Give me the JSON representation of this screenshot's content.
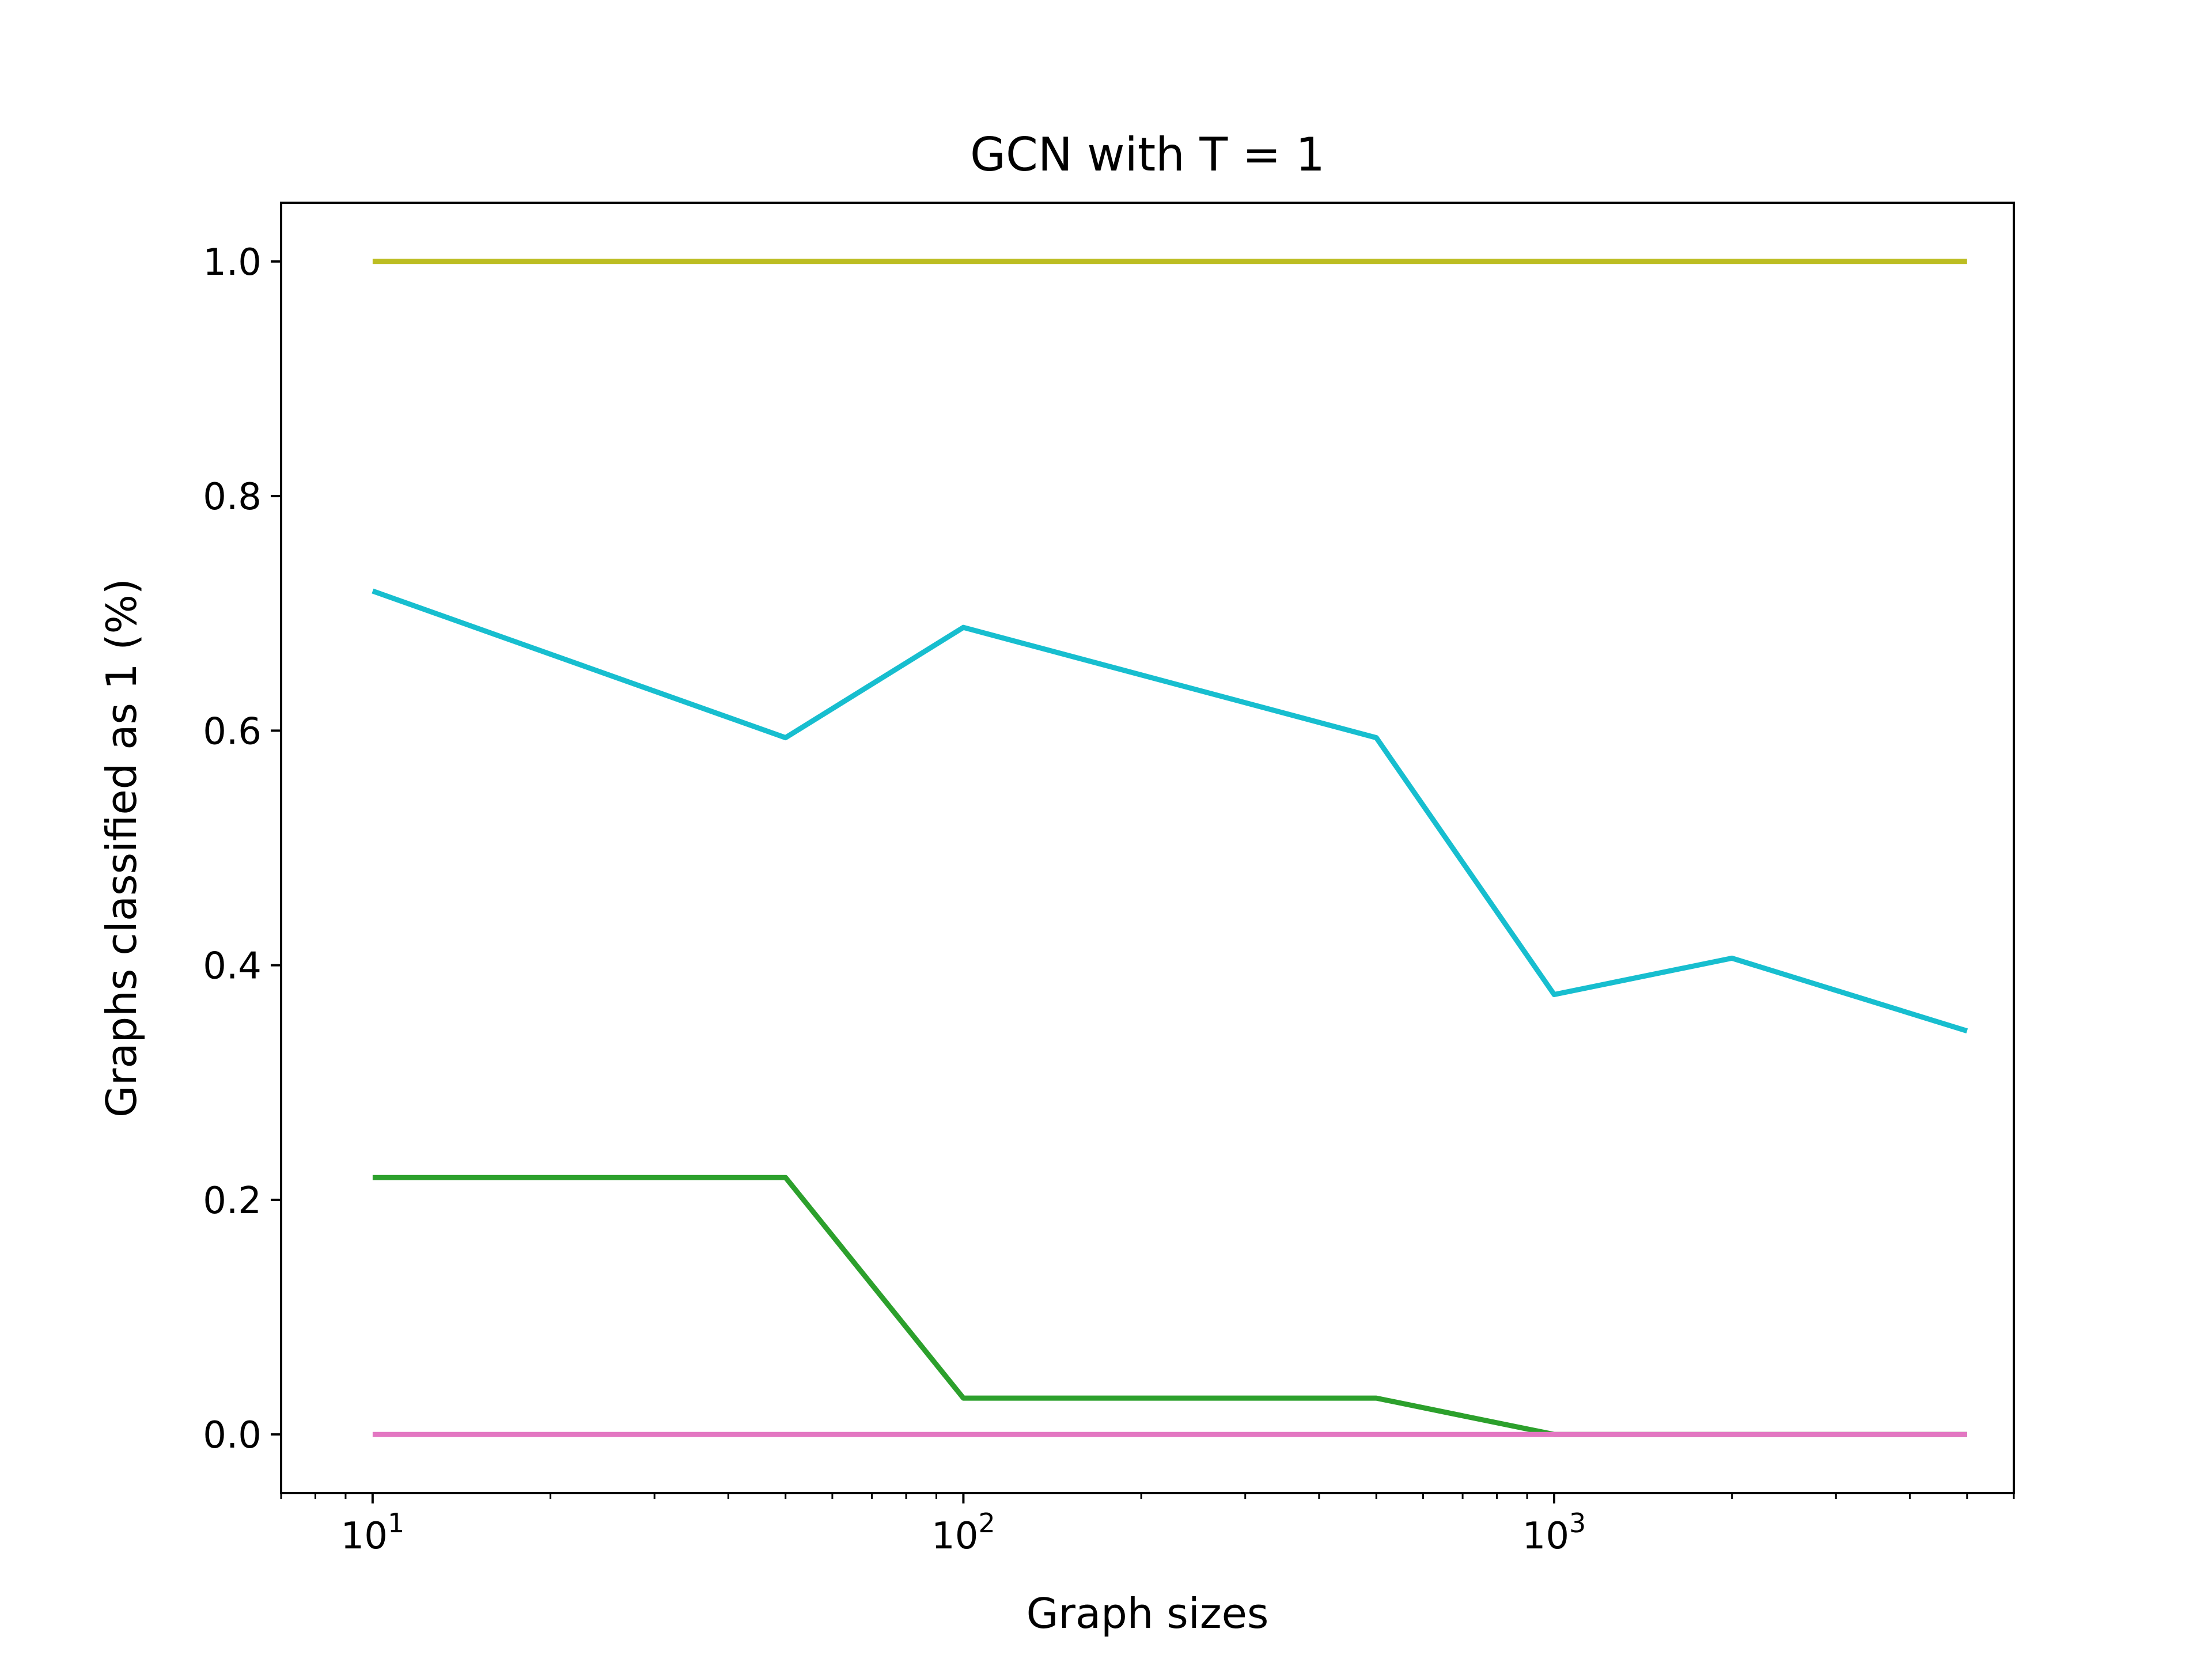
{
  "chart_data": {
    "type": "line",
    "title": "GCN with T = 1",
    "xlabel": "Graph sizes",
    "ylabel": "Graphs classified as 1 (%)",
    "xscale": "log",
    "xlim": [
      7,
      6000
    ],
    "ylim": [
      -0.05,
      1.05
    ],
    "grid": false,
    "x_ticks": [
      {
        "base": "10",
        "exp": "1",
        "value": 10
      },
      {
        "base": "10",
        "exp": "2",
        "value": 100
      },
      {
        "base": "10",
        "exp": "3",
        "value": 1000
      }
    ],
    "y_ticks": [
      "0.0",
      "0.2",
      "0.4",
      "0.6",
      "0.8",
      "1.0"
    ],
    "x": [
      10,
      50,
      100,
      500,
      1000,
      2000,
      5000
    ],
    "series": [
      {
        "name": "series-olive",
        "color": "#bcbd22",
        "values": [
          1.0,
          1.0,
          1.0,
          1.0,
          1.0,
          1.0,
          1.0
        ]
      },
      {
        "name": "series-cyan",
        "color": "#17becf",
        "values": [
          0.719,
          0.594,
          0.688,
          0.594,
          0.375,
          0.406,
          0.344
        ]
      },
      {
        "name": "series-green",
        "color": "#2ca02c",
        "values": [
          0.219,
          0.219,
          0.031,
          0.031,
          0.0,
          0.0,
          0.0
        ]
      },
      {
        "name": "series-pink",
        "color": "#e377c2",
        "values": [
          0.0,
          0.0,
          0.0,
          0.0,
          0.0,
          0.0,
          0.0
        ]
      }
    ]
  }
}
